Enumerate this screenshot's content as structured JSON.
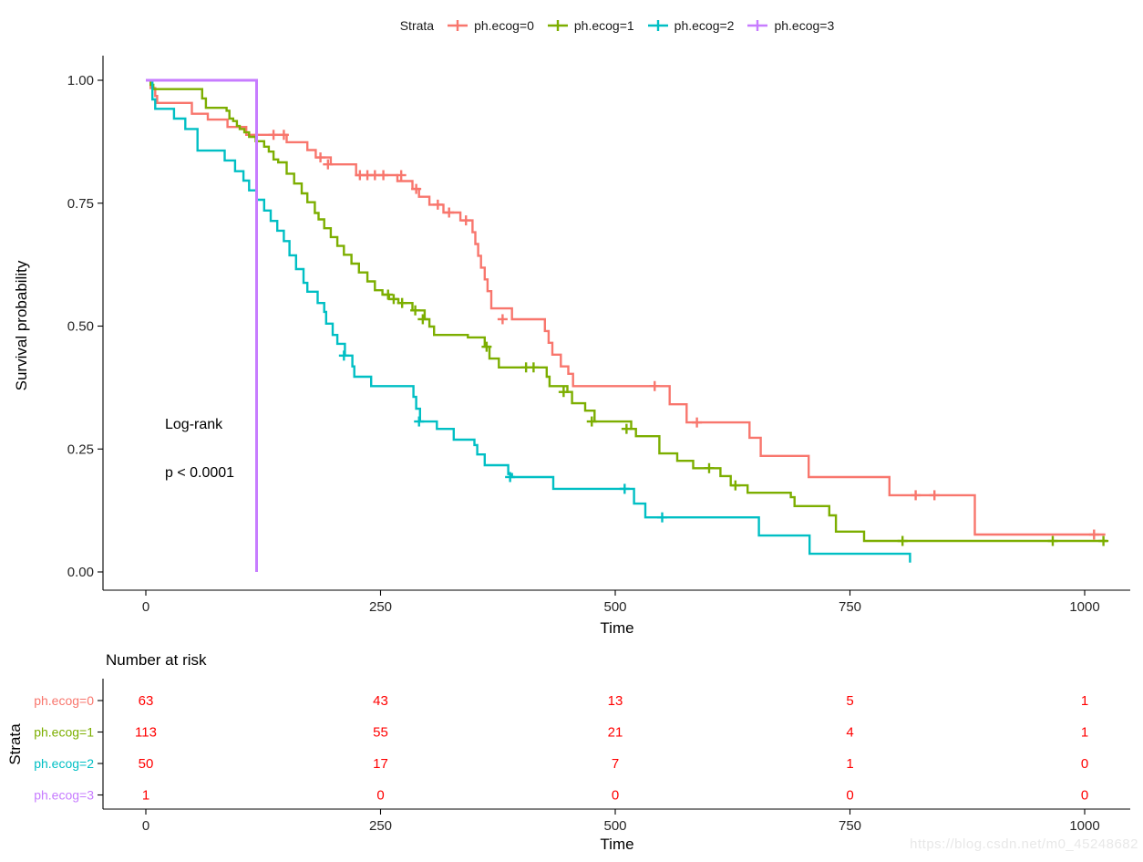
{
  "legend": {
    "title": "Strata",
    "items": [
      {
        "label": "ph.ecog=0",
        "color": "#F8766D"
      },
      {
        "label": "ph.ecog=1",
        "color": "#7CAE00"
      },
      {
        "label": "ph.ecog=2",
        "color": "#00BFC4"
      },
      {
        "label": "ph.ecog=3",
        "color": "#C77CFF"
      }
    ]
  },
  "plot": {
    "ylabel": "Survival probability",
    "xlabel": "Time",
    "annotation": {
      "line1": "Log-rank",
      "line2": "p < 0.0001"
    }
  },
  "chart_data": {
    "type": "km_step",
    "title": "",
    "xlabel": "Time",
    "ylabel": "Survival probability",
    "xlim": [
      0,
      1040
    ],
    "ylim": [
      0,
      1
    ],
    "grid": false,
    "legend_position": "top",
    "annotation": {
      "test": "Log-rank",
      "p": "p < 0.0001"
    },
    "x_ticks": [
      {
        "v": 0,
        "label": "0"
      },
      {
        "v": 250,
        "label": "250"
      },
      {
        "v": 500,
        "label": "500"
      },
      {
        "v": 750,
        "label": "750"
      },
      {
        "v": 1000,
        "label": "1000"
      }
    ],
    "y_ticks": [
      {
        "v": 0,
        "label": "0.00"
      },
      {
        "v": 0.25,
        "label": "0.25"
      },
      {
        "v": 0.5,
        "label": "0.50"
      },
      {
        "v": 0.75,
        "label": "0.75"
      },
      {
        "v": 1,
        "label": "1.00"
      }
    ],
    "series": [
      {
        "name": "ph.ecog=0",
        "color": "#F8766D",
        "points": [
          [
            0,
            1
          ],
          [
            5,
            0.984
          ],
          [
            10,
            0.968
          ],
          [
            12,
            0.954
          ],
          [
            49,
            0.932
          ],
          [
            66,
            0.92
          ],
          [
            87,
            0.905
          ],
          [
            107,
            0.889
          ],
          [
            150,
            0.874
          ],
          [
            172,
            0.858
          ],
          [
            181,
            0.843
          ],
          [
            197,
            0.829
          ],
          [
            224,
            0.807
          ],
          [
            268,
            0.795
          ],
          [
            284,
            0.779
          ],
          [
            291,
            0.763
          ],
          [
            302,
            0.747
          ],
          [
            317,
            0.731
          ],
          [
            335,
            0.715
          ],
          [
            348,
            0.691
          ],
          [
            351,
            0.667
          ],
          [
            354,
            0.643
          ],
          [
            357,
            0.619
          ],
          [
            361,
            0.595
          ],
          [
            364,
            0.571
          ],
          [
            368,
            0.536
          ],
          [
            390,
            0.514
          ],
          [
            425,
            0.49
          ],
          [
            429,
            0.466
          ],
          [
            433,
            0.442
          ],
          [
            442,
            0.418
          ],
          [
            450,
            0.403
          ],
          [
            455,
            0.378
          ],
          [
            558,
            0.341
          ],
          [
            576,
            0.304
          ],
          [
            643,
            0.273
          ],
          [
            655,
            0.236
          ],
          [
            706,
            0.193
          ],
          [
            792,
            0.156
          ],
          [
            883,
            0.076
          ],
          [
            1022,
            0.076
          ]
        ],
        "censors": [
          [
            136,
            0.889
          ],
          [
            147,
            0.889
          ],
          [
            186,
            0.843
          ],
          [
            194,
            0.829
          ],
          [
            228,
            0.807
          ],
          [
            236,
            0.807
          ],
          [
            244,
            0.807
          ],
          [
            253,
            0.807
          ],
          [
            272,
            0.807
          ],
          [
            288,
            0.779
          ],
          [
            311,
            0.747
          ],
          [
            323,
            0.731
          ],
          [
            341,
            0.715
          ],
          [
            380,
            0.514
          ],
          [
            542,
            0.378
          ],
          [
            587,
            0.304
          ],
          [
            820,
            0.156
          ],
          [
            840,
            0.156
          ],
          [
            1010,
            0.076
          ]
        ]
      },
      {
        "name": "ph.ecog=1",
        "color": "#7CAE00",
        "points": [
          [
            0,
            1
          ],
          [
            5,
            0.991
          ],
          [
            8,
            0.982
          ],
          [
            60,
            0.963
          ],
          [
            64,
            0.944
          ],
          [
            86,
            0.938
          ],
          [
            89,
            0.922
          ],
          [
            93,
            0.917
          ],
          [
            97,
            0.907
          ],
          [
            100,
            0.901
          ],
          [
            105,
            0.894
          ],
          [
            110,
            0.885
          ],
          [
            117,
            0.876
          ],
          [
            126,
            0.865
          ],
          [
            131,
            0.855
          ],
          [
            136,
            0.839
          ],
          [
            141,
            0.833
          ],
          [
            150,
            0.81
          ],
          [
            158,
            0.79
          ],
          [
            166,
            0.77
          ],
          [
            172,
            0.752
          ],
          [
            180,
            0.73
          ],
          [
            184,
            0.717
          ],
          [
            190,
            0.699
          ],
          [
            197,
            0.681
          ],
          [
            204,
            0.663
          ],
          [
            211,
            0.645
          ],
          [
            219,
            0.627
          ],
          [
            227,
            0.609
          ],
          [
            236,
            0.591
          ],
          [
            244,
            0.573
          ],
          [
            252,
            0.564
          ],
          [
            259,
            0.555
          ],
          [
            269,
            0.547
          ],
          [
            284,
            0.532
          ],
          [
            297,
            0.514
          ],
          [
            302,
            0.499
          ],
          [
            307,
            0.482
          ],
          [
            343,
            0.477
          ],
          [
            361,
            0.458
          ],
          [
            366,
            0.434
          ],
          [
            376,
            0.416
          ],
          [
            427,
            0.397
          ],
          [
            430,
            0.378
          ],
          [
            449,
            0.366
          ],
          [
            454,
            0.343
          ],
          [
            468,
            0.328
          ],
          [
            478,
            0.306
          ],
          [
            517,
            0.291
          ],
          [
            522,
            0.276
          ],
          [
            547,
            0.241
          ],
          [
            566,
            0.226
          ],
          [
            583,
            0.211
          ],
          [
            612,
            0.195
          ],
          [
            623,
            0.176
          ],
          [
            641,
            0.161
          ],
          [
            687,
            0.152
          ],
          [
            691,
            0.134
          ],
          [
            728,
            0.115
          ],
          [
            735,
            0.082
          ],
          [
            765,
            0.063
          ],
          [
            1024,
            0.063
          ]
        ],
        "censors": [
          [
            258,
            0.564
          ],
          [
            264,
            0.555
          ],
          [
            273,
            0.547
          ],
          [
            287,
            0.532
          ],
          [
            295,
            0.514
          ],
          [
            363,
            0.458
          ],
          [
            405,
            0.416
          ],
          [
            413,
            0.416
          ],
          [
            445,
            0.366
          ],
          [
            475,
            0.306
          ],
          [
            512,
            0.291
          ],
          [
            600,
            0.211
          ],
          [
            628,
            0.176
          ],
          [
            806,
            0.063
          ],
          [
            966,
            0.063
          ],
          [
            1020,
            0.063
          ]
        ]
      },
      {
        "name": "ph.ecog=2",
        "color": "#00BFC4",
        "points": [
          [
            0,
            1
          ],
          [
            7,
            0.961
          ],
          [
            10,
            0.942
          ],
          [
            30,
            0.922
          ],
          [
            42,
            0.901
          ],
          [
            55,
            0.857
          ],
          [
            84,
            0.837
          ],
          [
            95,
            0.815
          ],
          [
            104,
            0.796
          ],
          [
            110,
            0.776
          ],
          [
            118,
            0.757
          ],
          [
            126,
            0.735
          ],
          [
            133,
            0.714
          ],
          [
            140,
            0.694
          ],
          [
            147,
            0.673
          ],
          [
            153,
            0.644
          ],
          [
            160,
            0.616
          ],
          [
            168,
            0.588
          ],
          [
            172,
            0.57
          ],
          [
            183,
            0.547
          ],
          [
            190,
            0.529
          ],
          [
            192,
            0.505
          ],
          [
            199,
            0.482
          ],
          [
            204,
            0.464
          ],
          [
            212,
            0.44
          ],
          [
            220,
            0.418
          ],
          [
            222,
            0.397
          ],
          [
            240,
            0.378
          ],
          [
            285,
            0.356
          ],
          [
            288,
            0.332
          ],
          [
            292,
            0.306
          ],
          [
            310,
            0.291
          ],
          [
            328,
            0.269
          ],
          [
            350,
            0.258
          ],
          [
            353,
            0.239
          ],
          [
            361,
            0.217
          ],
          [
            386,
            0.199
          ],
          [
            390,
            0.193
          ],
          [
            434,
            0.169
          ],
          [
            520,
            0.139
          ],
          [
            532,
            0.111
          ],
          [
            653,
            0.074
          ],
          [
            707,
            0.037
          ],
          [
            814,
            0.019
          ]
        ],
        "censors": [
          [
            211,
            0.44
          ],
          [
            291,
            0.306
          ],
          [
            388,
            0.193
          ],
          [
            510,
            0.169
          ],
          [
            550,
            0.111
          ]
        ]
      },
      {
        "name": "ph.ecog=3",
        "color": "#C77CFF",
        "points": [
          [
            0,
            1
          ],
          [
            118,
            0
          ]
        ],
        "censors": []
      }
    ]
  },
  "risk_table": {
    "title": "Number at risk",
    "ylabel": "Strata",
    "xlabel": "Time",
    "columns_time": [
      0,
      250,
      500,
      750,
      1000
    ],
    "value_color": "#FF0000",
    "rows": [
      {
        "label": "ph.ecog=0",
        "color": "#F8766D",
        "values": [
          "63",
          "43",
          "13",
          "5",
          "1"
        ]
      },
      {
        "label": "ph.ecog=1",
        "color": "#7CAE00",
        "values": [
          "113",
          "55",
          "21",
          "4",
          "1"
        ]
      },
      {
        "label": "ph.ecog=2",
        "color": "#00BFC4",
        "values": [
          "50",
          "17",
          "7",
          "1",
          "0"
        ]
      },
      {
        "label": "ph.ecog=3",
        "color": "#C77CFF",
        "values": [
          "1",
          "0",
          "0",
          "0",
          "0"
        ]
      }
    ]
  },
  "watermark": "https://blog.csdn.net/m0_45248682"
}
